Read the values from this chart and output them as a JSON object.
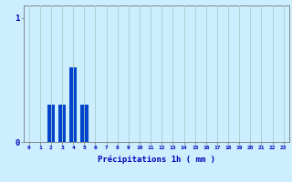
{
  "values": [
    0,
    0,
    0.3,
    0.3,
    0.6,
    0.3,
    0,
    0,
    0,
    0,
    0,
    0,
    0,
    0,
    0,
    0,
    0,
    0,
    0,
    0,
    0,
    0,
    0,
    0
  ],
  "bar_color": "#0044cc",
  "background_color": "#cceeff",
  "grid_color": "#aacccc",
  "axis_color": "#777777",
  "xlabel": "Précipitations 1h ( mm )",
  "xlabel_color": "#0000bb",
  "tick_color": "#0000bb",
  "xlim": [
    -0.5,
    23.5
  ],
  "ylim": [
    0,
    1.1
  ],
  "yticks": [
    0,
    1
  ],
  "xticks": [
    0,
    1,
    2,
    3,
    4,
    5,
    6,
    7,
    8,
    9,
    10,
    11,
    12,
    13,
    14,
    15,
    16,
    17,
    18,
    19,
    20,
    21,
    22,
    23
  ],
  "figsize": [
    3.2,
    2.0
  ],
  "dpi": 100
}
